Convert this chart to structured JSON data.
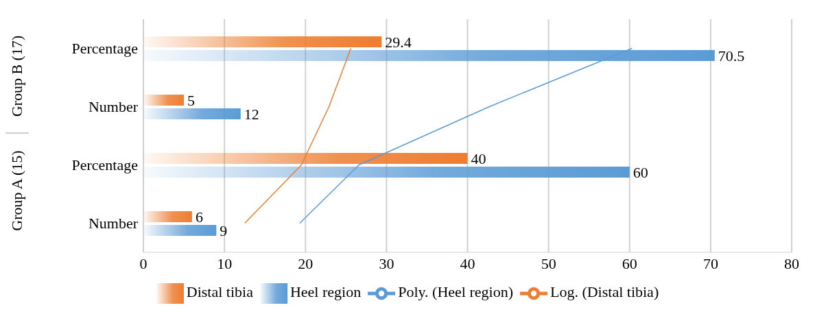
{
  "chart_data": {
    "type": "bar",
    "orientation": "horizontal",
    "categories": [
      "Percentage",
      "Number",
      "Percentage",
      "Number"
    ],
    "series": [
      {
        "name": "Distal tibia",
        "color": "#ed7d31",
        "values": [
          29.4,
          5,
          40,
          6
        ],
        "value_labels": [
          "29.4",
          "5",
          "40",
          "6"
        ]
      },
      {
        "name": "Heel region",
        "color": "#5b9bd5",
        "values": [
          70.5,
          12,
          60,
          9
        ],
        "value_labels": [
          "70.5",
          "12",
          "60",
          "9"
        ]
      },
      {
        "name": "Poly. (Heel region)",
        "type": "line",
        "color": "#5b9bd5",
        "values": [
          60.3,
          42.7,
          26.6,
          19.3
        ]
      },
      {
        "name": "Log. (Distal tibia)",
        "type": "line",
        "color": "#ed7d31",
        "values": [
          25.6,
          22.9,
          19.5,
          12.5
        ]
      }
    ],
    "xlim": [
      0,
      80
    ],
    "xticks": [
      0,
      10,
      20,
      30,
      40,
      50,
      60,
      70,
      80
    ],
    "grid": "x",
    "legend": "bottom",
    "marker": "none",
    "line_style": "solid",
    "annotations": [
      "Group B (17)",
      "Group A (15)"
    ]
  }
}
